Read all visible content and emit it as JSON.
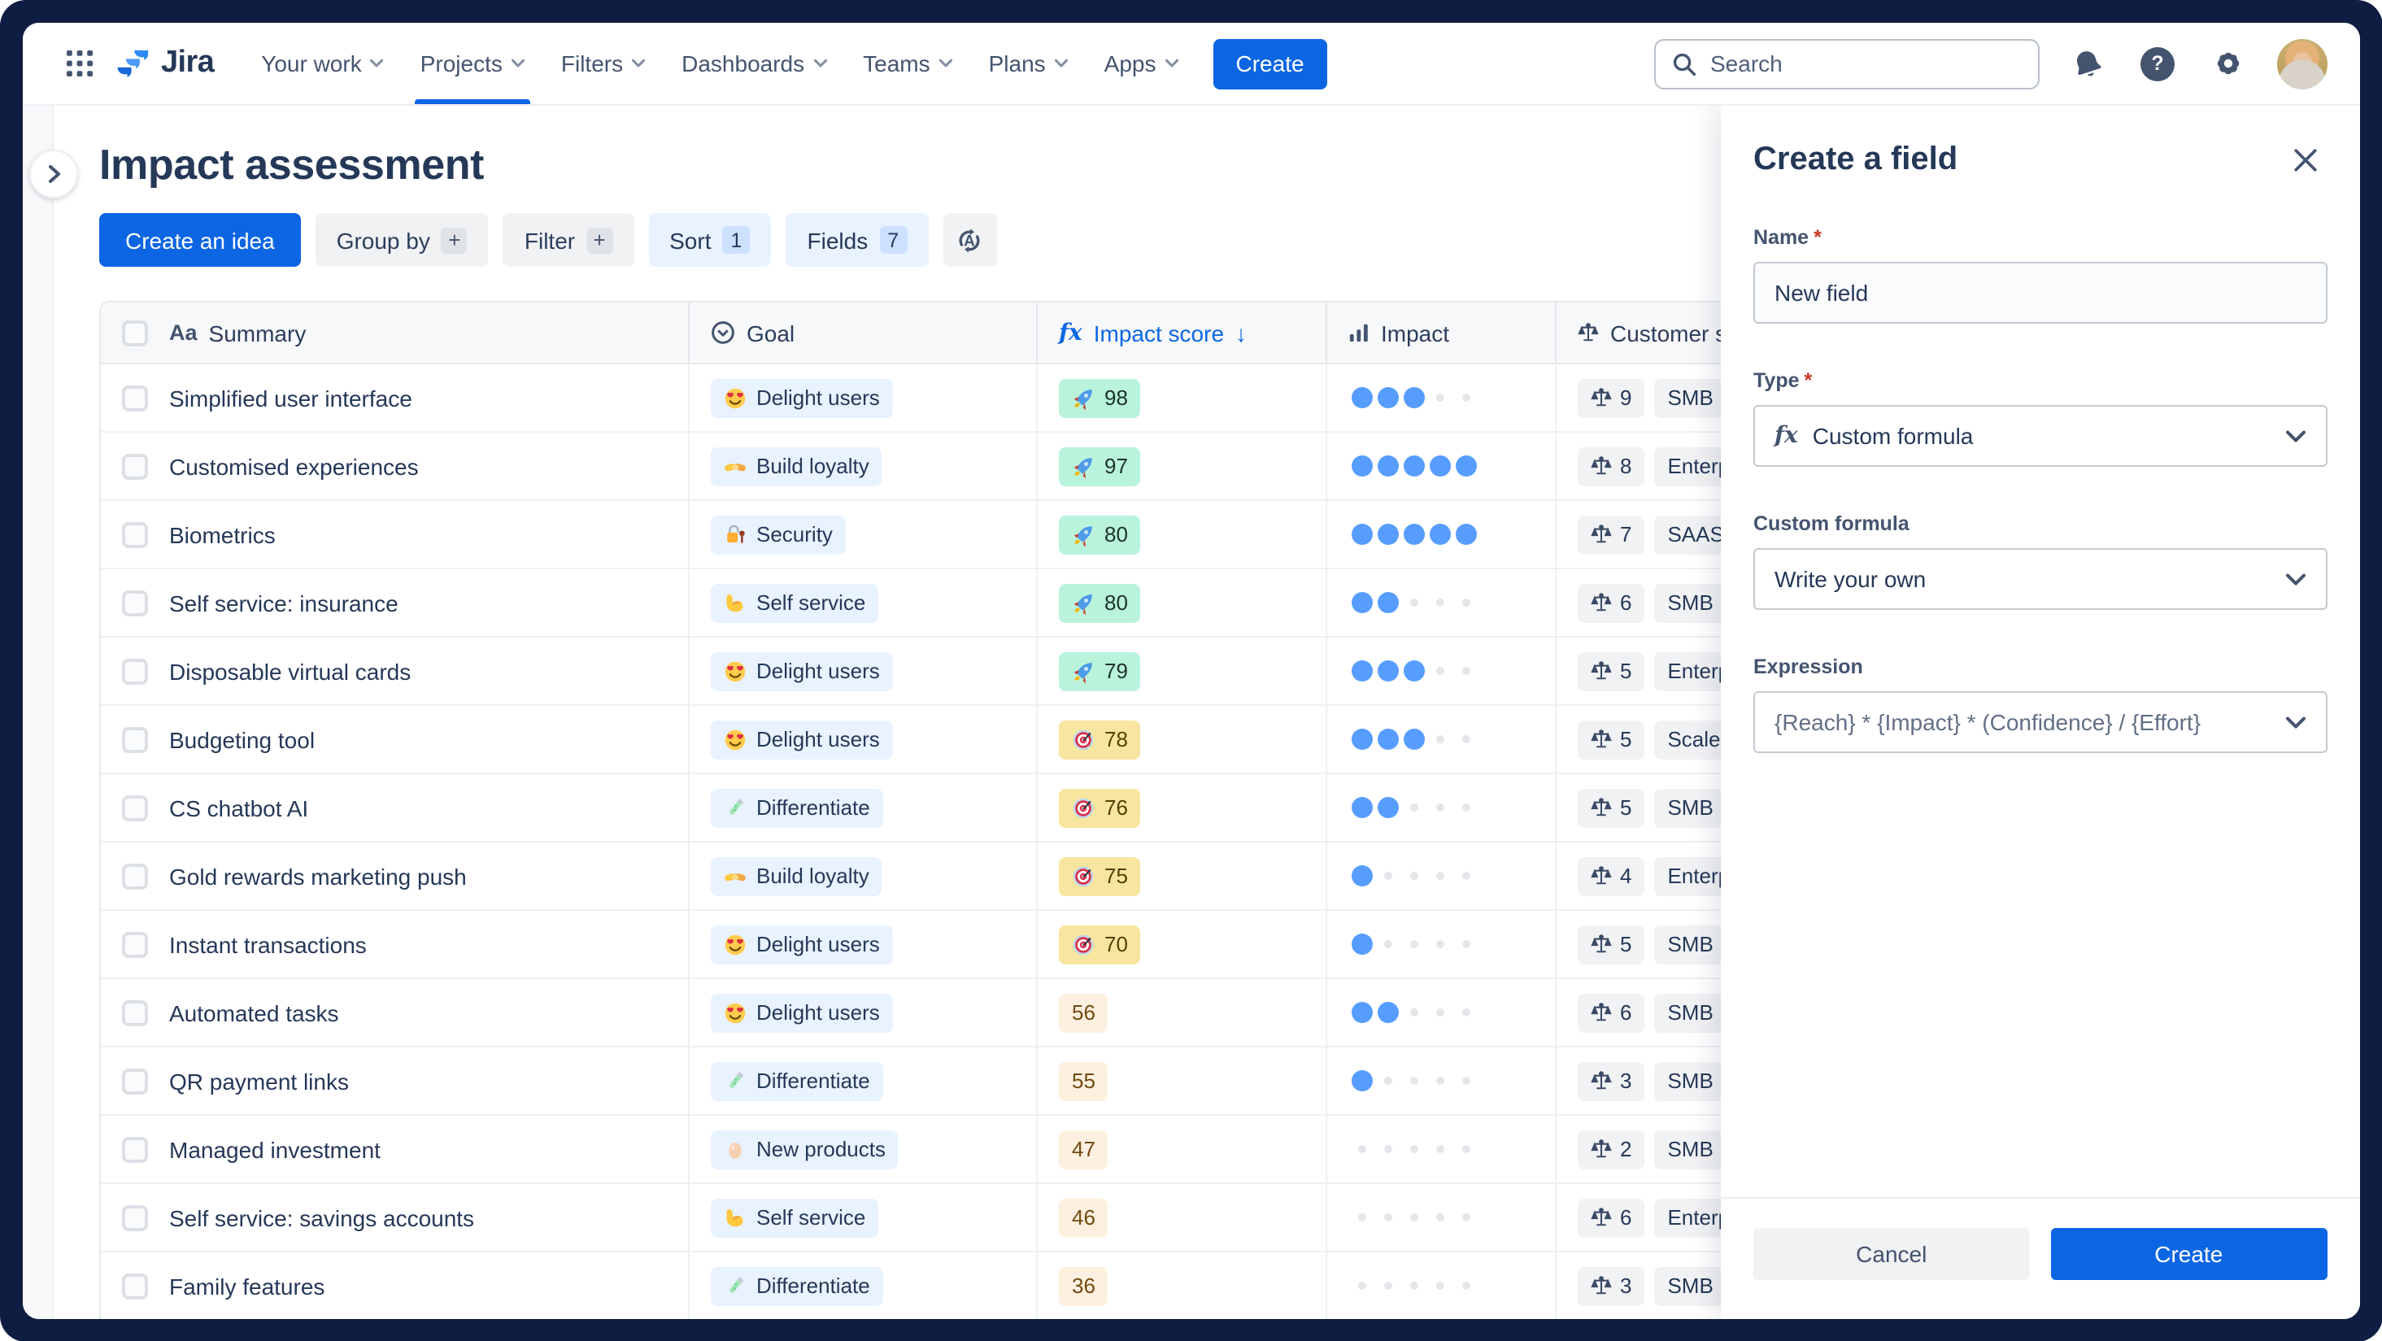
{
  "nav": {
    "logo_text": "Jira",
    "items": [
      {
        "label": "Your work",
        "active": false
      },
      {
        "label": "Projects",
        "active": true
      },
      {
        "label": "Filters",
        "active": false
      },
      {
        "label": "Dashboards",
        "active": false
      },
      {
        "label": "Teams",
        "active": false
      },
      {
        "label": "Plans",
        "active": false
      },
      {
        "label": "Apps",
        "active": false
      }
    ],
    "create_label": "Create",
    "search_placeholder": "Search"
  },
  "page": {
    "title": "Impact assessment",
    "toolbar": {
      "create_idea": "Create an idea",
      "group_by": "Group by",
      "group_by_affix": "+",
      "filter": "Filter",
      "filter_affix": "+",
      "sort": "Sort",
      "sort_count": "1",
      "fields": "Fields",
      "fields_count": "7"
    }
  },
  "table": {
    "headers": {
      "summary": "Summary",
      "summary_icon": "Aa",
      "goal": "Goal",
      "impact_score": "Impact score",
      "impact_score_sort": "↓",
      "impact": "Impact",
      "customer": "Customer segment"
    },
    "rows": [
      {
        "summary": "Simplified user interface",
        "goal_icon": "heart-eyes",
        "goal": "Delight users",
        "score": "98",
        "score_tier": "high",
        "score_icon": "rocket",
        "impact": 3,
        "weight": "9",
        "segment": "SMB"
      },
      {
        "summary": "Customised experiences",
        "goal_icon": "handshake",
        "goal": "Build loyalty",
        "score": "97",
        "score_tier": "high",
        "score_icon": "rocket",
        "impact": 5,
        "weight": "8",
        "segment": "Enterprise"
      },
      {
        "summary": "Biometrics",
        "goal_icon": "lock",
        "goal": "Security",
        "score": "80",
        "score_tier": "high",
        "score_icon": "rocket",
        "impact": 5,
        "weight": "7",
        "segment": "SAAS"
      },
      {
        "summary": "Self service: insurance",
        "goal_icon": "biceps",
        "goal": "Self service",
        "score": "80",
        "score_tier": "high",
        "score_icon": "rocket",
        "impact": 2,
        "weight": "6",
        "segment": "SMB"
      },
      {
        "summary": "Disposable virtual cards",
        "goal_icon": "heart-eyes",
        "goal": "Delight users",
        "score": "79",
        "score_tier": "high",
        "score_icon": "rocket",
        "impact": 3,
        "weight": "5",
        "segment": "Enterprise"
      },
      {
        "summary": "Budgeting tool",
        "goal_icon": "heart-eyes",
        "goal": "Delight users",
        "score": "78",
        "score_tier": "mid",
        "score_icon": "target",
        "impact": 3,
        "weight": "5",
        "segment": "Scaleups"
      },
      {
        "summary": "CS chatbot AI",
        "goal_icon": "testtube",
        "goal": "Differentiate",
        "score": "76",
        "score_tier": "mid",
        "score_icon": "target",
        "impact": 2,
        "weight": "5",
        "segment": "SMB"
      },
      {
        "summary": "Gold rewards marketing push",
        "goal_icon": "handshake",
        "goal": "Build loyalty",
        "score": "75",
        "score_tier": "mid",
        "score_icon": "target",
        "impact": 1,
        "weight": "4",
        "segment": "Enterprise"
      },
      {
        "summary": "Instant transactions",
        "goal_icon": "heart-eyes",
        "goal": "Delight users",
        "score": "70",
        "score_tier": "mid",
        "score_icon": "target",
        "impact": 1,
        "weight": "5",
        "segment": "SMB"
      },
      {
        "summary": "Automated tasks",
        "goal_icon": "heart-eyes",
        "goal": "Delight users",
        "score": "56",
        "score_tier": "low",
        "score_icon": null,
        "impact": 2,
        "weight": "6",
        "segment": "SMB"
      },
      {
        "summary": "QR payment links",
        "goal_icon": "testtube",
        "goal": "Differentiate",
        "score": "55",
        "score_tier": "low",
        "score_icon": null,
        "impact": 1,
        "weight": "3",
        "segment": "SMB"
      },
      {
        "summary": "Managed investment",
        "goal_icon": "egg",
        "goal": "New products",
        "score": "47",
        "score_tier": "low",
        "score_icon": null,
        "impact": 0,
        "weight": "2",
        "segment": "SMB"
      },
      {
        "summary": "Self service: savings accounts",
        "goal_icon": "biceps",
        "goal": "Self service",
        "score": "46",
        "score_tier": "low",
        "score_icon": null,
        "impact": 0,
        "weight": "6",
        "segment": "Enterprise"
      },
      {
        "summary": "Family features",
        "goal_icon": "testtube",
        "goal": "Differentiate",
        "score": "36",
        "score_tier": "low",
        "score_icon": null,
        "impact": 0,
        "weight": "3",
        "segment": "SMB"
      }
    ]
  },
  "panel": {
    "title": "Create a field",
    "name_label": "Name",
    "required_mark": "*",
    "name_value": "New field",
    "type_label": "Type",
    "type_value": "Custom formula",
    "custom_formula_label": "Custom formula",
    "custom_formula_value": "Write your own",
    "expression_label": "Expression",
    "expression_value": "{Reach} * {Impact} * (Confidence} / {Effort}",
    "cancel_label": "Cancel",
    "create_label": "Create"
  },
  "colors": {
    "accent": "#0C66E4",
    "score_high_bg": "#BAF3DB",
    "score_mid_bg": "#F8E6A0",
    "score_low_bg": "#FDF0E0",
    "goal_chip_bg": "#E9F2FF",
    "impact_dot": "#579DFF",
    "frame": "#0F1D42"
  }
}
